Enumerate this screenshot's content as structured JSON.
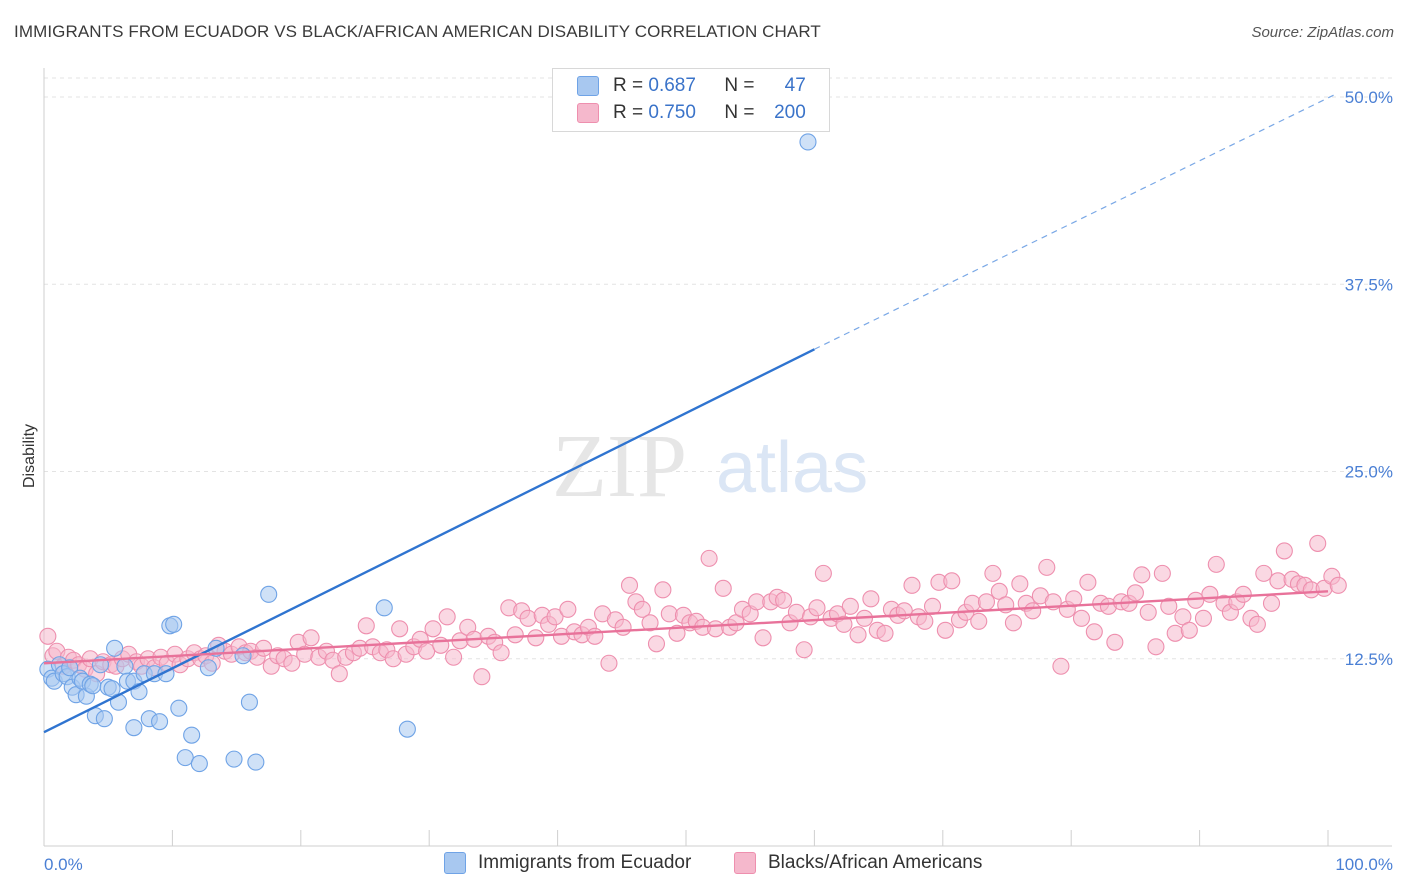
{
  "title": "IMMIGRANTS FROM ECUADOR VS BLACK/AFRICAN AMERICAN DISABILITY CORRELATION CHART",
  "source": "Source: ZipAtlas.com",
  "watermark": {
    "zip": "ZIP",
    "atlas": "atlas"
  },
  "legend": {
    "rows": [
      {
        "r_label": "R =",
        "r_value": "0.687",
        "n_label": "N =",
        "n_value": "47",
        "color": "#a8c8f0"
      },
      {
        "r_label": "R =",
        "r_value": "0.750",
        "n_label": "N =",
        "n_value": "200",
        "color": "#f5b8cc"
      }
    ]
  },
  "bottom_legend": [
    {
      "label": "Immigrants from Ecuador",
      "color": "#a8c8f0"
    },
    {
      "label": "Blacks/African Americans",
      "color": "#f5b8cc"
    }
  ],
  "chart_data": {
    "type": "scatter",
    "title": "IMMIGRANTS FROM ECUADOR VS BLACK/AFRICAN AMERICAN DISABILITY CORRELATION CHART",
    "xlabel": "",
    "ylabel": "Disability",
    "xlim": [
      0,
      100
    ],
    "ylim": [
      0,
      52.5
    ],
    "x_tick_labels": [
      "0.0%",
      "100.0%"
    ],
    "y_ticks": [
      12.5,
      25.0,
      37.5,
      50.0
    ],
    "y_tick_labels": [
      "12.5%",
      "25.0%",
      "37.5%",
      "50.0%"
    ],
    "grid": true,
    "legend_position": "top-center",
    "series": [
      {
        "name": "Immigrants from Ecuador",
        "color": "#6fa3e6",
        "fill": "#a8c8f0",
        "trend": {
          "x0": 0,
          "y0": 7.6,
          "x1": 100,
          "y1": 50.2,
          "solid_until": 60,
          "line_color": "#2f74d0"
        },
        "points": [
          [
            0.3,
            11.8
          ],
          [
            0.6,
            11.2
          ],
          [
            0.8,
            11.0
          ],
          [
            1.2,
            12.1
          ],
          [
            1.5,
            11.5
          ],
          [
            1.8,
            11.3
          ],
          [
            2.0,
            11.9
          ],
          [
            2.2,
            10.6
          ],
          [
            2.5,
            10.1
          ],
          [
            2.8,
            11.2
          ],
          [
            3.0,
            11.0
          ],
          [
            3.3,
            10.0
          ],
          [
            3.6,
            10.8
          ],
          [
            3.8,
            10.7
          ],
          [
            4.0,
            8.7
          ],
          [
            4.4,
            12.1
          ],
          [
            4.7,
            8.5
          ],
          [
            5.0,
            10.6
          ],
          [
            5.3,
            10.5
          ],
          [
            5.5,
            13.2
          ],
          [
            5.8,
            9.6
          ],
          [
            6.3,
            12.0
          ],
          [
            6.5,
            11.0
          ],
          [
            7.0,
            7.9
          ],
          [
            7.0,
            11.0
          ],
          [
            7.4,
            10.3
          ],
          [
            7.8,
            11.5
          ],
          [
            8.2,
            8.5
          ],
          [
            8.6,
            11.5
          ],
          [
            9.0,
            8.3
          ],
          [
            9.5,
            11.5
          ],
          [
            9.8,
            14.7
          ],
          [
            10.1,
            14.8
          ],
          [
            10.5,
            9.2
          ],
          [
            11.0,
            5.9
          ],
          [
            11.5,
            7.4
          ],
          [
            12.1,
            5.5
          ],
          [
            12.8,
            11.9
          ],
          [
            13.4,
            13.2
          ],
          [
            14.8,
            5.8
          ],
          [
            15.5,
            12.7
          ],
          [
            16.0,
            9.6
          ],
          [
            16.5,
            5.6
          ],
          [
            17.5,
            16.8
          ],
          [
            26.5,
            15.9
          ],
          [
            28.3,
            7.8
          ],
          [
            59.5,
            47.0
          ]
        ]
      },
      {
        "name": "Blacks/African Americans",
        "color": "#ee8fae",
        "fill": "#f5b8cc",
        "trend": {
          "x0": 0,
          "y0": 12.2,
          "x1": 100,
          "y1": 17.0,
          "line_color": "#e8729a"
        },
        "points": [
          [
            0.3,
            14.0
          ],
          [
            0.7,
            12.7
          ],
          [
            1.0,
            13.0
          ],
          [
            1.5,
            12.0
          ],
          [
            1.9,
            12.6
          ],
          [
            2.3,
            12.4
          ],
          [
            2.7,
            12.1
          ],
          [
            3.2,
            11.8
          ],
          [
            3.6,
            12.5
          ],
          [
            4.1,
            11.5
          ],
          [
            4.6,
            12.3
          ],
          [
            5.2,
            12.1
          ],
          [
            5.6,
            12.0
          ],
          [
            6.1,
            12.5
          ],
          [
            6.6,
            12.8
          ],
          [
            7.2,
            12.3
          ],
          [
            7.6,
            12.0
          ],
          [
            8.1,
            12.5
          ],
          [
            8.6,
            11.9
          ],
          [
            9.1,
            12.6
          ],
          [
            9.6,
            12.2
          ],
          [
            10.2,
            12.8
          ],
          [
            10.6,
            12.1
          ],
          [
            11.2,
            12.5
          ],
          [
            11.7,
            12.9
          ],
          [
            12.2,
            12.5
          ],
          [
            12.6,
            12.7
          ],
          [
            13.1,
            12.2
          ],
          [
            13.6,
            13.4
          ],
          [
            14.1,
            13.0
          ],
          [
            14.6,
            12.8
          ],
          [
            15.2,
            13.3
          ],
          [
            15.7,
            12.9
          ],
          [
            16.1,
            13.0
          ],
          [
            16.6,
            12.6
          ],
          [
            17.1,
            13.2
          ],
          [
            17.7,
            12.0
          ],
          [
            18.2,
            12.7
          ],
          [
            18.7,
            12.5
          ],
          [
            19.3,
            12.2
          ],
          [
            19.8,
            13.6
          ],
          [
            20.3,
            12.8
          ],
          [
            20.8,
            13.9
          ],
          [
            21.4,
            12.6
          ],
          [
            22.0,
            13.0
          ],
          [
            22.5,
            12.4
          ],
          [
            23.0,
            11.5
          ],
          [
            23.5,
            12.6
          ],
          [
            24.1,
            12.9
          ],
          [
            24.6,
            13.2
          ],
          [
            25.1,
            14.7
          ],
          [
            25.6,
            13.3
          ],
          [
            26.2,
            12.9
          ],
          [
            26.7,
            13.1
          ],
          [
            27.2,
            12.5
          ],
          [
            27.7,
            14.5
          ],
          [
            28.2,
            12.8
          ],
          [
            28.8,
            13.3
          ],
          [
            29.3,
            13.8
          ],
          [
            29.8,
            13.0
          ],
          [
            30.3,
            14.5
          ],
          [
            30.9,
            13.4
          ],
          [
            31.4,
            15.3
          ],
          [
            31.9,
            12.6
          ],
          [
            32.4,
            13.7
          ],
          [
            33.0,
            14.6
          ],
          [
            33.5,
            13.8
          ],
          [
            34.1,
            11.3
          ],
          [
            34.6,
            14.0
          ],
          [
            35.1,
            13.6
          ],
          [
            35.6,
            12.9
          ],
          [
            36.2,
            15.9
          ],
          [
            36.7,
            14.1
          ],
          [
            37.2,
            15.7
          ],
          [
            37.7,
            15.2
          ],
          [
            38.3,
            13.9
          ],
          [
            38.8,
            15.4
          ],
          [
            39.3,
            14.8
          ],
          [
            39.8,
            15.3
          ],
          [
            40.3,
            14.0
          ],
          [
            40.8,
            15.8
          ],
          [
            41.3,
            14.3
          ],
          [
            41.9,
            14.1
          ],
          [
            42.4,
            14.6
          ],
          [
            42.9,
            14.0
          ],
          [
            43.5,
            15.5
          ],
          [
            44.0,
            12.2
          ],
          [
            44.5,
            15.1
          ],
          [
            45.1,
            14.6
          ],
          [
            45.6,
            17.4
          ],
          [
            46.1,
            16.3
          ],
          [
            46.6,
            15.8
          ],
          [
            47.2,
            14.9
          ],
          [
            47.7,
            13.5
          ],
          [
            48.2,
            17.1
          ],
          [
            48.7,
            15.5
          ],
          [
            49.3,
            14.2
          ],
          [
            49.8,
            15.4
          ],
          [
            50.3,
            14.9
          ],
          [
            50.8,
            15.0
          ],
          [
            51.3,
            14.6
          ],
          [
            51.8,
            19.2
          ],
          [
            52.3,
            14.5
          ],
          [
            52.9,
            17.2
          ],
          [
            53.4,
            14.6
          ],
          [
            53.9,
            14.9
          ],
          [
            54.4,
            15.8
          ],
          [
            55.0,
            15.5
          ],
          [
            55.5,
            16.3
          ],
          [
            56.0,
            13.9
          ],
          [
            56.6,
            16.3
          ],
          [
            57.1,
            16.6
          ],
          [
            57.6,
            16.4
          ],
          [
            58.1,
            14.9
          ],
          [
            58.6,
            15.6
          ],
          [
            59.2,
            13.1
          ],
          [
            59.7,
            15.3
          ],
          [
            60.2,
            15.9
          ],
          [
            60.7,
            18.2
          ],
          [
            61.3,
            15.2
          ],
          [
            61.8,
            15.5
          ],
          [
            62.3,
            14.8
          ],
          [
            62.8,
            16.0
          ],
          [
            63.4,
            14.1
          ],
          [
            63.9,
            15.2
          ],
          [
            64.4,
            16.5
          ],
          [
            64.9,
            14.4
          ],
          [
            65.5,
            14.2
          ],
          [
            66.0,
            15.8
          ],
          [
            66.5,
            15.4
          ],
          [
            67.0,
            15.7
          ],
          [
            67.6,
            17.4
          ],
          [
            68.1,
            15.3
          ],
          [
            68.6,
            15.0
          ],
          [
            69.2,
            16.0
          ],
          [
            69.7,
            17.6
          ],
          [
            70.2,
            14.4
          ],
          [
            70.7,
            17.7
          ],
          [
            71.3,
            15.1
          ],
          [
            71.8,
            15.6
          ],
          [
            72.3,
            16.2
          ],
          [
            72.8,
            15.0
          ],
          [
            73.4,
            16.3
          ],
          [
            73.9,
            18.2
          ],
          [
            74.4,
            17.0
          ],
          [
            74.9,
            16.1
          ],
          [
            75.5,
            14.9
          ],
          [
            76.0,
            17.5
          ],
          [
            76.5,
            16.2
          ],
          [
            77.0,
            15.7
          ],
          [
            77.6,
            16.7
          ],
          [
            78.1,
            18.6
          ],
          [
            78.6,
            16.3
          ],
          [
            79.2,
            12.0
          ],
          [
            79.7,
            15.8
          ],
          [
            80.2,
            16.5
          ],
          [
            80.8,
            15.2
          ],
          [
            81.3,
            17.6
          ],
          [
            81.8,
            14.3
          ],
          [
            82.3,
            16.2
          ],
          [
            82.9,
            16.0
          ],
          [
            83.4,
            13.6
          ],
          [
            83.9,
            16.3
          ],
          [
            84.5,
            16.2
          ],
          [
            85.0,
            16.9
          ],
          [
            85.5,
            18.1
          ],
          [
            86.0,
            15.6
          ],
          [
            86.6,
            13.3
          ],
          [
            87.1,
            18.2
          ],
          [
            87.6,
            16.0
          ],
          [
            88.1,
            14.2
          ],
          [
            88.7,
            15.3
          ],
          [
            89.2,
            14.4
          ],
          [
            89.7,
            16.4
          ],
          [
            90.3,
            15.2
          ],
          [
            90.8,
            16.8
          ],
          [
            91.3,
            18.8
          ],
          [
            91.9,
            16.2
          ],
          [
            92.4,
            15.6
          ],
          [
            92.9,
            16.3
          ],
          [
            93.4,
            16.8
          ],
          [
            94.0,
            15.2
          ],
          [
            94.5,
            14.8
          ],
          [
            95.0,
            18.2
          ],
          [
            95.6,
            16.2
          ],
          [
            96.1,
            17.7
          ],
          [
            96.6,
            19.7
          ],
          [
            97.2,
            17.8
          ],
          [
            97.7,
            17.5
          ],
          [
            98.2,
            17.4
          ],
          [
            98.7,
            17.1
          ],
          [
            99.2,
            20.2
          ],
          [
            99.7,
            17.2
          ],
          [
            100.3,
            18.0
          ],
          [
            100.8,
            17.4
          ],
          [
            101.3,
            16.4
          ],
          [
            101.8,
            17.8
          ],
          [
            102.3,
            16.2
          ],
          [
            102.9,
            13.5
          ],
          [
            103.2,
            18.7
          ]
        ]
      }
    ]
  }
}
